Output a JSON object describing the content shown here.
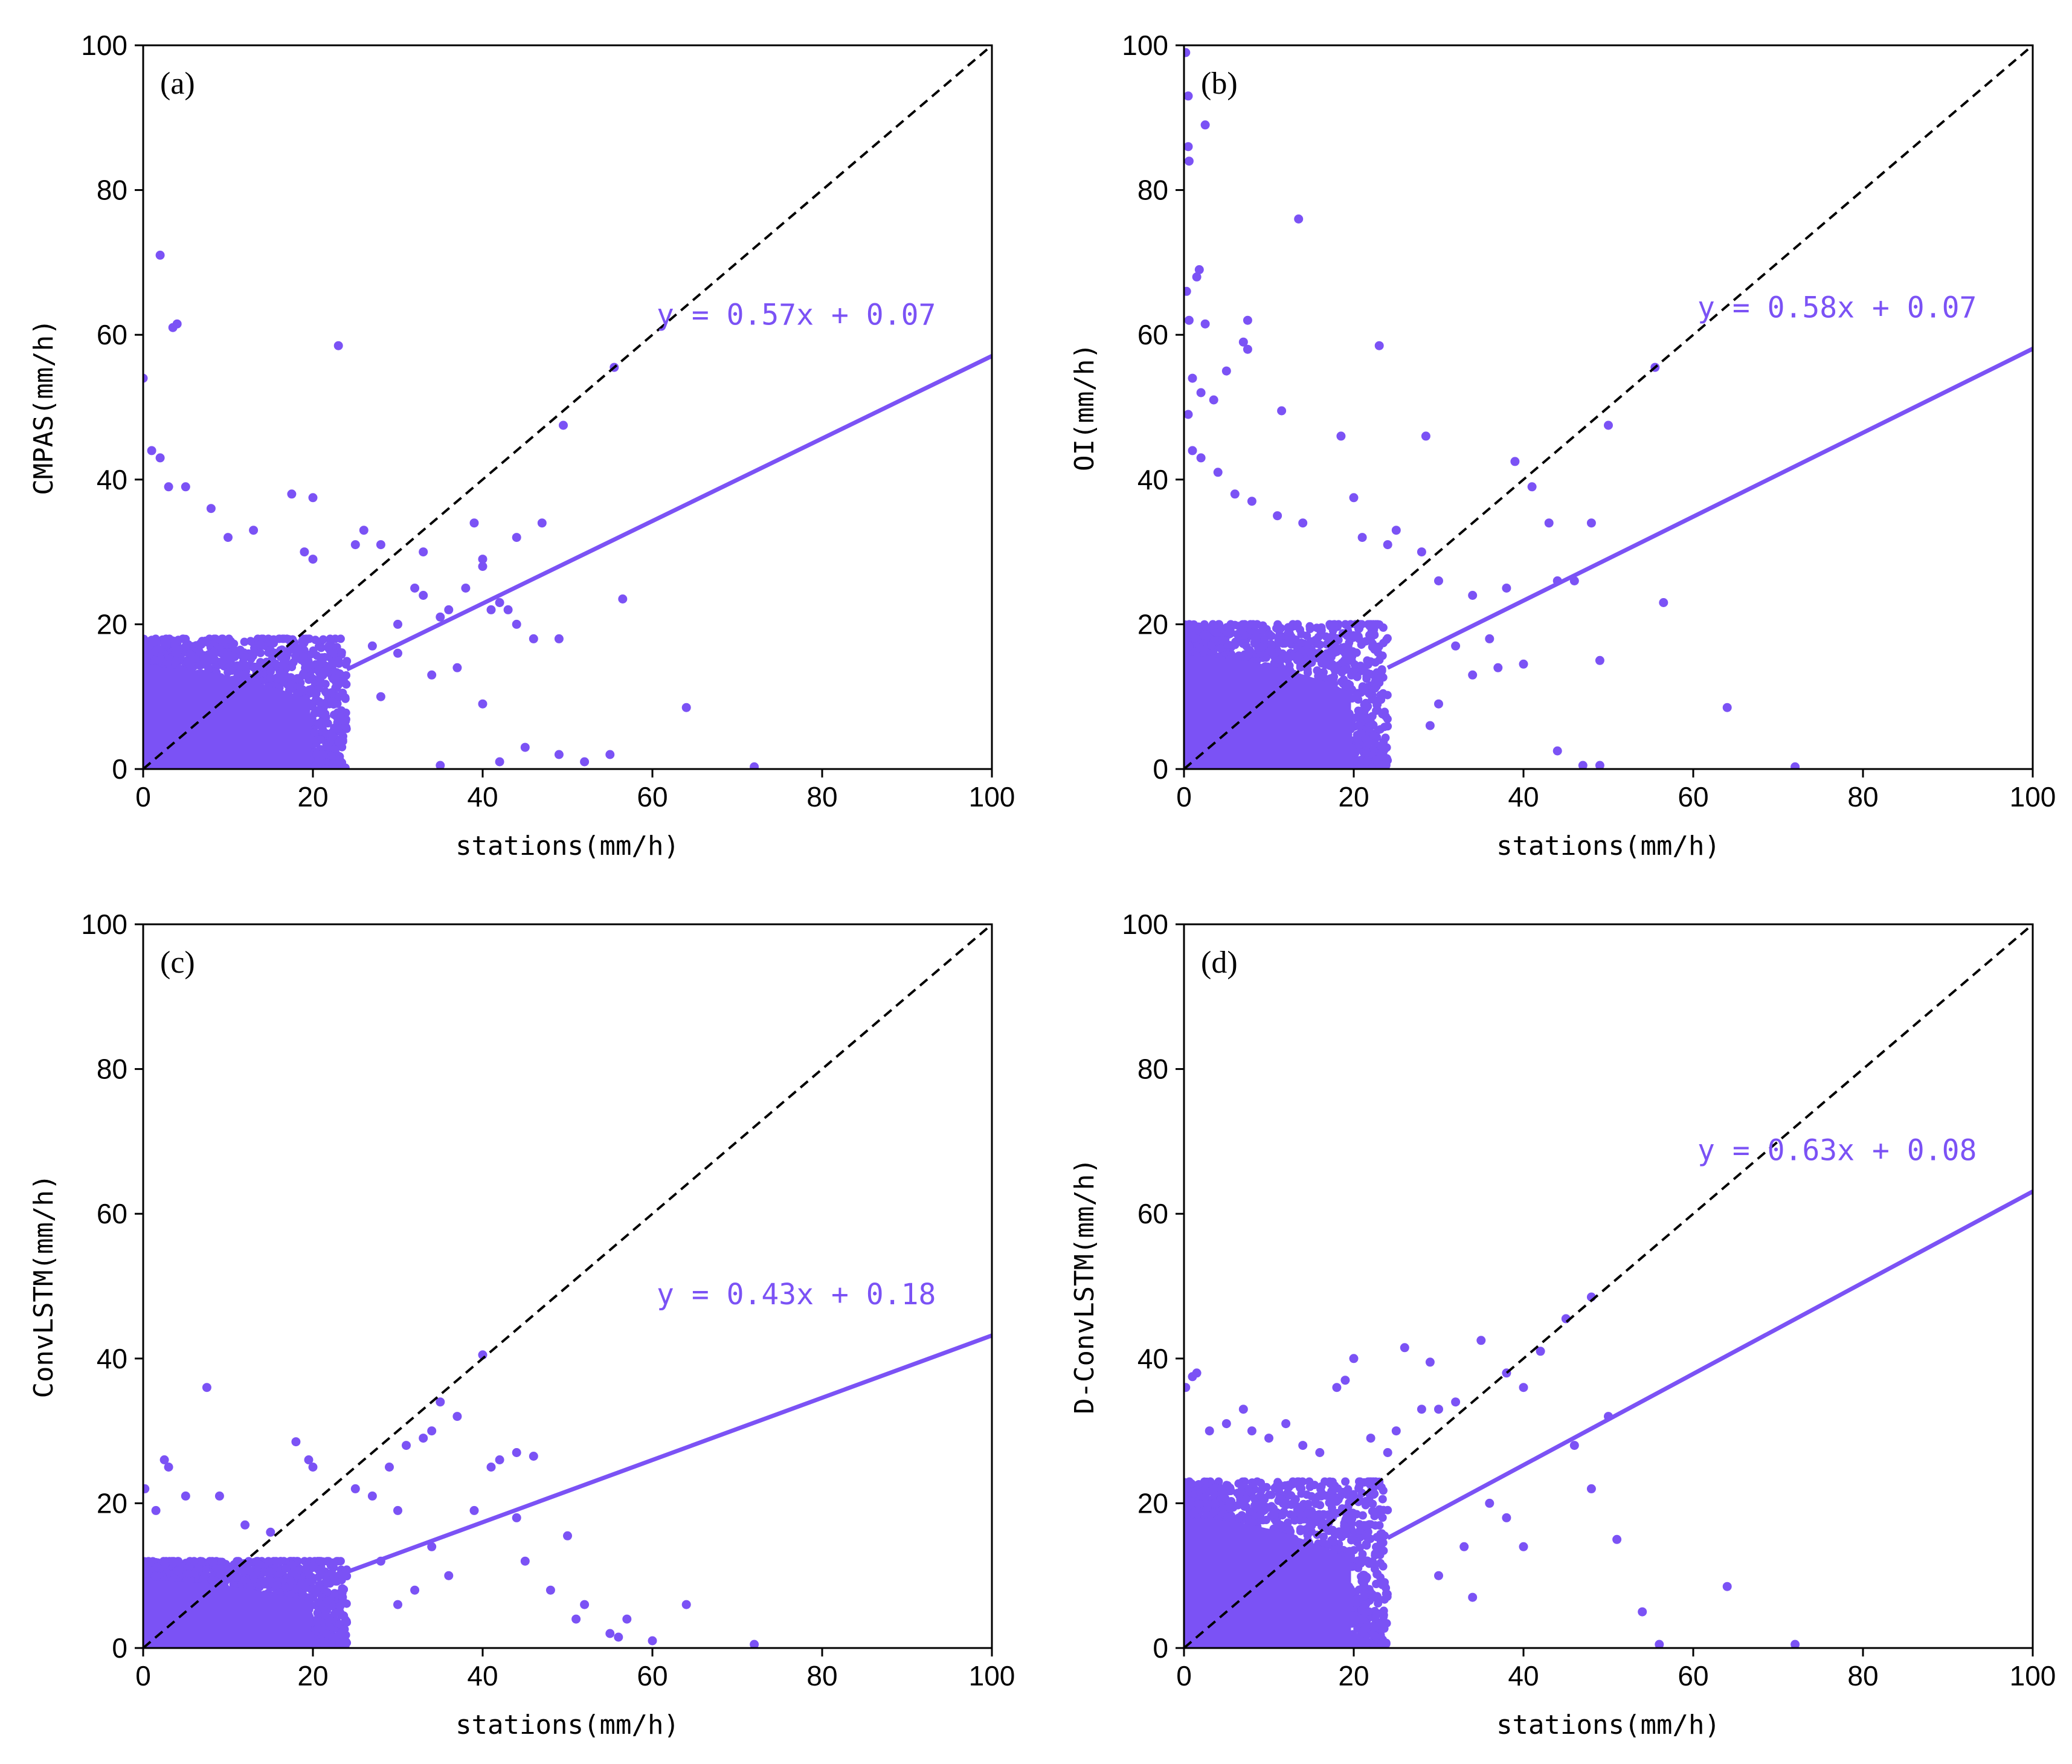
{
  "figure": {
    "accent_color": "#7b52f5",
    "identity_line_color": "#000000"
  },
  "chart_data": [
    {
      "type": "scatter",
      "panel_label": "(a)",
      "xlabel": "stations(mm/h)",
      "ylabel": "CMPAS(mm/h)",
      "xlim": [
        0,
        100
      ],
      "ylim": [
        0,
        100
      ],
      "xticks": [
        "0",
        "20",
        "40",
        "60",
        "80",
        "100"
      ],
      "yticks": [
        "0",
        "20",
        "40",
        "60",
        "80",
        "100"
      ],
      "equation": "y = 0.57x + 0.07",
      "fit": {
        "slope": 0.57,
        "intercept": 0.07
      },
      "identity_line": true,
      "dense_cluster": {
        "x_max": 24,
        "y_max": 18
      },
      "outliers": [
        [
          0,
          54
        ],
        [
          2,
          71
        ],
        [
          3.5,
          61
        ],
        [
          4,
          61.5
        ],
        [
          1,
          44
        ],
        [
          2,
          43
        ],
        [
          3,
          39
        ],
        [
          5,
          39
        ],
        [
          8,
          36
        ],
        [
          10,
          32
        ],
        [
          13,
          33
        ],
        [
          17.5,
          38
        ],
        [
          20,
          37.5
        ],
        [
          23,
          58.5
        ],
        [
          19,
          30
        ],
        [
          20,
          29
        ],
        [
          25,
          31
        ],
        [
          26,
          33
        ],
        [
          28,
          31
        ],
        [
          33,
          30
        ],
        [
          38,
          25
        ],
        [
          39,
          34
        ],
        [
          40,
          28
        ],
        [
          42,
          23
        ],
        [
          44,
          20
        ],
        [
          46,
          18
        ],
        [
          49,
          18
        ],
        [
          40,
          29
        ],
        [
          30,
          20
        ],
        [
          32,
          25
        ],
        [
          33,
          24
        ],
        [
          35,
          21
        ],
        [
          36,
          22
        ],
        [
          41,
          22
        ],
        [
          43,
          22
        ],
        [
          44,
          32
        ],
        [
          47,
          34
        ],
        [
          49.5,
          47.5
        ],
        [
          55.5,
          55.5
        ],
        [
          56.5,
          23.5
        ],
        [
          64,
          8.5
        ],
        [
          72,
          0.3
        ],
        [
          55,
          2
        ],
        [
          49,
          2
        ],
        [
          45,
          3
        ],
        [
          40,
          9
        ],
        [
          37,
          14
        ],
        [
          34,
          13
        ],
        [
          30,
          16
        ],
        [
          28,
          10
        ],
        [
          27,
          17
        ],
        [
          35,
          0.5
        ],
        [
          42,
          1
        ],
        [
          52,
          1
        ]
      ]
    },
    {
      "type": "scatter",
      "panel_label": "(b)",
      "xlabel": "stations(mm/h)",
      "ylabel": "OI(mm/h)",
      "xlim": [
        0,
        100
      ],
      "ylim": [
        0,
        100
      ],
      "xticks": [
        "0",
        "20",
        "40",
        "60",
        "80",
        "100"
      ],
      "yticks": [
        "0",
        "20",
        "40",
        "60",
        "80",
        "100"
      ],
      "equation": "y = 0.58x + 0.07",
      "fit": {
        "slope": 0.58,
        "intercept": 0.07
      },
      "identity_line": true,
      "dense_cluster": {
        "x_max": 24,
        "y_max": 20
      },
      "outliers": [
        [
          0.2,
          99
        ],
        [
          0.5,
          93
        ],
        [
          0.5,
          86
        ],
        [
          0.6,
          84
        ],
        [
          2.5,
          89
        ],
        [
          1.5,
          68
        ],
        [
          1.8,
          69
        ],
        [
          0.3,
          66
        ],
        [
          0.6,
          62
        ],
        [
          2.5,
          61.5
        ],
        [
          7.5,
          62
        ],
        [
          7,
          59
        ],
        [
          5,
          55
        ],
        [
          1,
          54
        ],
        [
          2,
          52
        ],
        [
          3.5,
          51
        ],
        [
          0.5,
          49
        ],
        [
          7.5,
          58
        ],
        [
          11.5,
          49.5
        ],
        [
          13.5,
          76
        ],
        [
          18.5,
          46
        ],
        [
          23,
          58.5
        ],
        [
          28.5,
          46
        ],
        [
          1,
          44
        ],
        [
          2,
          43
        ],
        [
          4,
          41
        ],
        [
          6,
          38
        ],
        [
          8,
          37
        ],
        [
          11,
          35
        ],
        [
          14,
          34
        ],
        [
          20,
          37.5
        ],
        [
          21,
          32
        ],
        [
          24,
          31
        ],
        [
          25,
          33
        ],
        [
          28,
          30
        ],
        [
          30,
          26
        ],
        [
          34,
          24
        ],
        [
          38,
          25
        ],
        [
          39,
          42.5
        ],
        [
          41,
          39
        ],
        [
          43,
          34
        ],
        [
          44,
          26
        ],
        [
          46,
          26
        ],
        [
          48,
          34
        ],
        [
          49,
          15
        ],
        [
          50,
          47.5
        ],
        [
          55.5,
          55.5
        ],
        [
          56.5,
          23
        ],
        [
          64,
          8.5
        ],
        [
          72,
          0.3
        ],
        [
          49,
          0.5
        ],
        [
          47,
          0.5
        ],
        [
          44,
          2.5
        ],
        [
          40,
          14.5
        ],
        [
          37,
          14
        ],
        [
          34,
          13
        ],
        [
          30,
          9
        ],
        [
          29,
          6
        ],
        [
          32,
          17
        ],
        [
          36,
          18
        ]
      ]
    },
    {
      "type": "scatter",
      "panel_label": "(c)",
      "xlabel": "stations(mm/h)",
      "ylabel": "ConvLSTM(mm/h)",
      "xlim": [
        0,
        100
      ],
      "ylim": [
        0,
        100
      ],
      "xticks": [
        "0",
        "20",
        "40",
        "60",
        "80",
        "100"
      ],
      "yticks": [
        "0",
        "20",
        "40",
        "60",
        "80",
        "100"
      ],
      "equation": "y = 0.43x + 0.18",
      "fit": {
        "slope": 0.43,
        "intercept": 0.18
      },
      "identity_line": true,
      "dense_cluster": {
        "x_max": 24,
        "y_max": 12
      },
      "outliers": [
        [
          0.2,
          22
        ],
        [
          1.5,
          19
        ],
        [
          2.5,
          26
        ],
        [
          3,
          25
        ],
        [
          7.5,
          36
        ],
        [
          5,
          21
        ],
        [
          9,
          21
        ],
        [
          12,
          17
        ],
        [
          15,
          16
        ],
        [
          18,
          28.5
        ],
        [
          19.5,
          26
        ],
        [
          20,
          25
        ],
        [
          25,
          22
        ],
        [
          27,
          21
        ],
        [
          29,
          25
        ],
        [
          30,
          19
        ],
        [
          31,
          28
        ],
        [
          33,
          29
        ],
        [
          34,
          30
        ],
        [
          35,
          34
        ],
        [
          37,
          32
        ],
        [
          40,
          40.5
        ],
        [
          39,
          19
        ],
        [
          41,
          25
        ],
        [
          42,
          26
        ],
        [
          44,
          27
        ],
        [
          46,
          26.5
        ],
        [
          44,
          18
        ],
        [
          45,
          12
        ],
        [
          48,
          8
        ],
        [
          50,
          15.5
        ],
        [
          51,
          4
        ],
        [
          52,
          6
        ],
        [
          55,
          2
        ],
        [
          56,
          1.5
        ],
        [
          57,
          4
        ],
        [
          60,
          1
        ],
        [
          64,
          6
        ],
        [
          72,
          0.5
        ],
        [
          36,
          10
        ],
        [
          34,
          14
        ],
        [
          32,
          8
        ],
        [
          30,
          6
        ],
        [
          28,
          12
        ]
      ]
    },
    {
      "type": "scatter",
      "panel_label": "(d)",
      "xlabel": "stations(mm/h)",
      "ylabel": "D-ConvLSTM(mm/h)",
      "xlim": [
        0,
        100
      ],
      "ylim": [
        0,
        100
      ],
      "xticks": [
        "0",
        "20",
        "40",
        "60",
        "80",
        "100"
      ],
      "yticks": [
        "0",
        "20",
        "40",
        "60",
        "80",
        "100"
      ],
      "equation": "y = 0.63x + 0.08",
      "fit": {
        "slope": 0.63,
        "intercept": 0.08
      },
      "identity_line": true,
      "dense_cluster": {
        "x_max": 24,
        "y_max": 23
      },
      "outliers": [
        [
          0.2,
          36
        ],
        [
          1,
          37.5
        ],
        [
          1.5,
          38
        ],
        [
          3,
          30
        ],
        [
          5,
          31
        ],
        [
          7,
          33
        ],
        [
          8,
          30
        ],
        [
          10,
          29
        ],
        [
          12,
          31
        ],
        [
          14,
          28
        ],
        [
          16,
          27
        ],
        [
          18,
          36
        ],
        [
          19,
          37
        ],
        [
          20,
          40
        ],
        [
          22,
          29
        ],
        [
          24,
          27
        ],
        [
          25,
          30
        ],
        [
          26,
          41.5
        ],
        [
          28,
          33
        ],
        [
          29,
          39.5
        ],
        [
          30,
          33
        ],
        [
          32,
          34
        ],
        [
          35,
          42.5
        ],
        [
          38,
          38
        ],
        [
          40,
          36
        ],
        [
          42,
          41
        ],
        [
          45,
          45.5
        ],
        [
          48,
          48.5
        ],
        [
          50,
          32
        ],
        [
          46,
          28
        ],
        [
          48,
          22
        ],
        [
          51,
          15
        ],
        [
          54,
          5
        ],
        [
          56,
          0.5
        ],
        [
          64,
          8.5
        ],
        [
          72,
          0.5
        ],
        [
          40,
          14
        ],
        [
          38,
          18
        ],
        [
          36,
          20
        ],
        [
          33,
          14
        ],
        [
          30,
          10
        ],
        [
          34,
          7
        ]
      ]
    }
  ]
}
